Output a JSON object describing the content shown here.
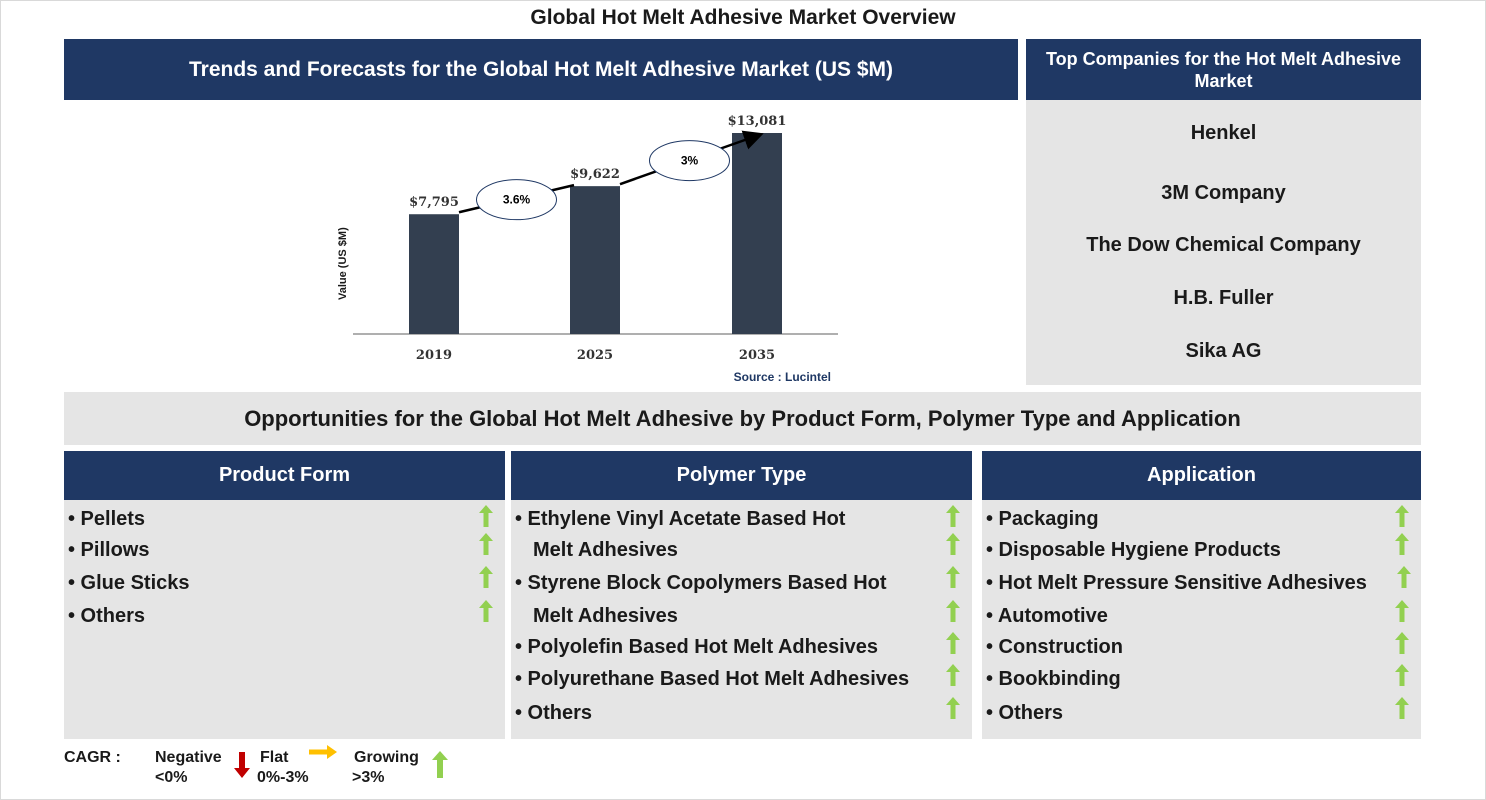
{
  "title": "Global Hot Melt Adhesive Market Overview",
  "chart_section": {
    "header": "Trends and Forecasts for the Global Hot Melt Adhesive Market (US $M)",
    "source": "Source : Lucintel"
  },
  "chart_data": {
    "type": "bar",
    "categories": [
      "2019",
      "2025",
      "2035"
    ],
    "values": [
      7795,
      9622,
      13081
    ],
    "value_labels": [
      "$7,795",
      "$9,622",
      "$13,081"
    ],
    "ylabel": "Value (US $M)",
    "xlabel": "",
    "ylim": [
      0,
      13081
    ],
    "bar_color": "#333f50",
    "grid": false,
    "cagr_annotations": [
      {
        "from": "2019",
        "to": "2025",
        "label": "3.6%"
      },
      {
        "from": "2025",
        "to": "2035",
        "label": "3%"
      }
    ]
  },
  "companies": {
    "header": "Top Companies for the Hot Melt Adhesive Market",
    "list": [
      "Henkel",
      "3M Company",
      "The Dow Chemical Company",
      "H.B. Fuller",
      "Sika AG"
    ]
  },
  "opportunities": {
    "header": "Opportunities for the Global Hot Melt Adhesive by Product Form, Polymer Type and Application",
    "segments": [
      {
        "title": "Product Form",
        "items": [
          "• Pellets",
          "• Pillows",
          "• Glue Sticks",
          "• Others"
        ],
        "trends": [
          "growing",
          "growing",
          "growing",
          "growing"
        ]
      },
      {
        "title": "Polymer Type",
        "items": [
          "• Ethylene Vinyl Acetate Based Hot",
          "Melt Adhesives",
          "• Styrene Block Copolymers Based Hot",
          "Melt Adhesives",
          "• Polyolefin Based Hot Melt Adhesives",
          "• Polyurethane Based Hot Melt Adhesives",
          "• Others"
        ],
        "trends": [
          "growing",
          "growing",
          "growing",
          "growing",
          "growing",
          "growing",
          "growing"
        ]
      },
      {
        "title": "Application",
        "items": [
          "• Packaging",
          "• Disposable Hygiene Products",
          "• Hot Melt Pressure Sensitive Adhesives",
          "• Automotive",
          "• Construction",
          "• Bookbinding",
          "• Others"
        ],
        "trends": [
          "growing",
          "growing",
          "growing",
          "growing",
          "growing",
          "growing",
          "growing"
        ]
      }
    ]
  },
  "legend": {
    "cagr_label": "CAGR :",
    "negative": {
      "label": "Negative",
      "range": "<0%",
      "color": "#c00000"
    },
    "flat": {
      "label": "Flat",
      "range": "0%-3%",
      "color": "#ffc000"
    },
    "growing": {
      "label": "Growing",
      "range": ">3%",
      "color": "#92d050"
    }
  }
}
